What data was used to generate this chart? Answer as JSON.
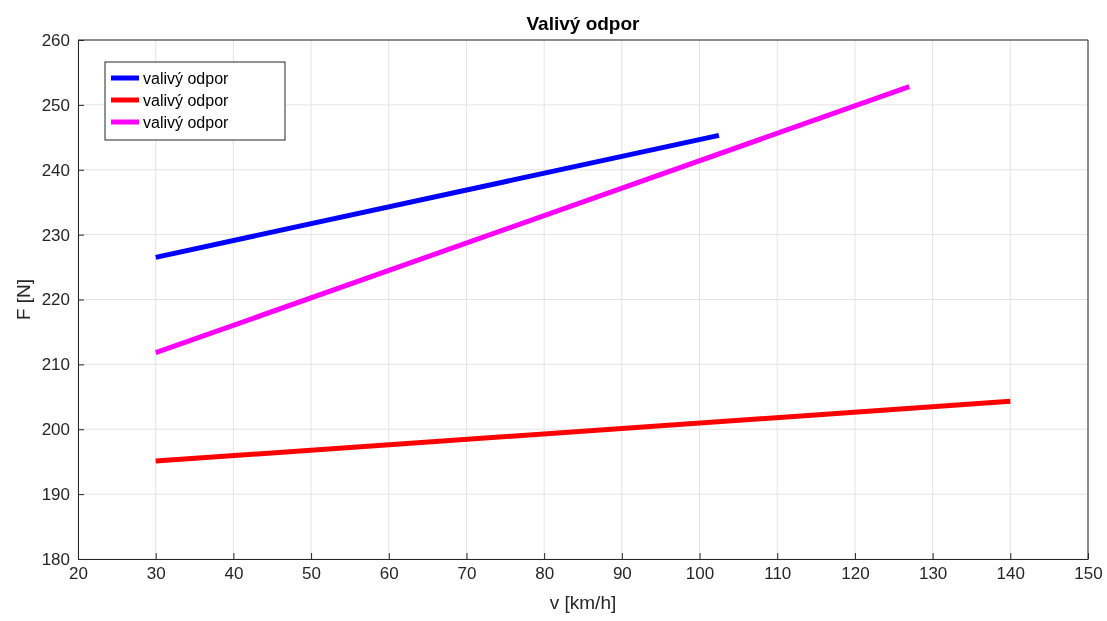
{
  "chart_data": {
    "type": "line",
    "title": "Valivý odpor",
    "xlabel": "v [km/h]",
    "ylabel": "F [N]",
    "xlim": [
      20,
      150
    ],
    "xticks": [
      20,
      30,
      40,
      50,
      60,
      70,
      80,
      90,
      100,
      110,
      120,
      130,
      140,
      150
    ],
    "ylim": [
      180,
      260
    ],
    "yticks": [
      180,
      190,
      200,
      210,
      220,
      230,
      240,
      250,
      260
    ],
    "grid": true,
    "legend": "top left",
    "line_style": "solid",
    "series": [
      {
        "name": "valivý odpor",
        "color": "#0000ff",
        "x": [
          30,
          102.5
        ],
        "values": [
          226.5,
          245.3
        ]
      },
      {
        "name": "valivý odpor",
        "color": "#ff0000",
        "x": [
          30,
          140
        ],
        "values": [
          195.1,
          204.3
        ]
      },
      {
        "name": "valivý odpor",
        "color": "#ff00ff",
        "x": [
          30,
          127
        ],
        "values": [
          211.8,
          252.8
        ]
      }
    ]
  }
}
